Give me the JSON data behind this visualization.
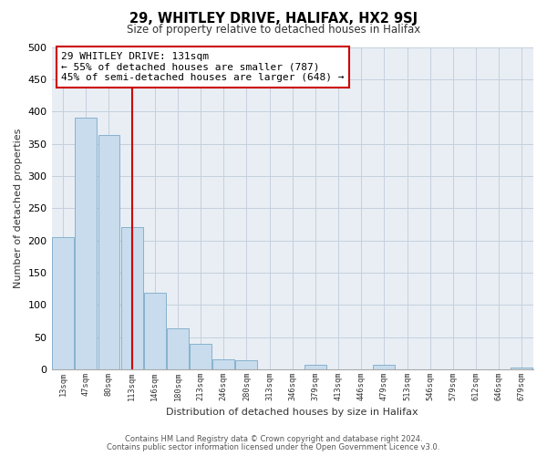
{
  "title": "29, WHITLEY DRIVE, HALIFAX, HX2 9SJ",
  "subtitle": "Size of property relative to detached houses in Halifax",
  "xlabel": "Distribution of detached houses by size in Halifax",
  "ylabel": "Number of detached properties",
  "bar_labels": [
    "13sqm",
    "47sqm",
    "80sqm",
    "113sqm",
    "146sqm",
    "180sqm",
    "213sqm",
    "246sqm",
    "280sqm",
    "313sqm",
    "346sqm",
    "379sqm",
    "413sqm",
    "446sqm",
    "479sqm",
    "513sqm",
    "546sqm",
    "579sqm",
    "612sqm",
    "646sqm",
    "679sqm"
  ],
  "bar_values": [
    205,
    390,
    363,
    220,
    118,
    63,
    40,
    15,
    14,
    0,
    0,
    7,
    0,
    0,
    7,
    0,
    0,
    0,
    0,
    0,
    2
  ],
  "bar_color": "#c8dced",
  "bar_edge_color": "#7aaac8",
  "vline_x": 3.0,
  "vline_color": "#cc0000",
  "annotation_text": "29 WHITLEY DRIVE: 131sqm\n← 55% of detached houses are smaller (787)\n45% of semi-detached houses are larger (648) →",
  "annotation_box_color": "white",
  "annotation_box_edge": "#cc0000",
  "ylim": [
    0,
    500
  ],
  "footer_line1": "Contains HM Land Registry data © Crown copyright and database right 2024.",
  "footer_line2": "Contains public sector information licensed under the Open Government Licence v3.0.",
  "bg_color": "#e8eef4"
}
